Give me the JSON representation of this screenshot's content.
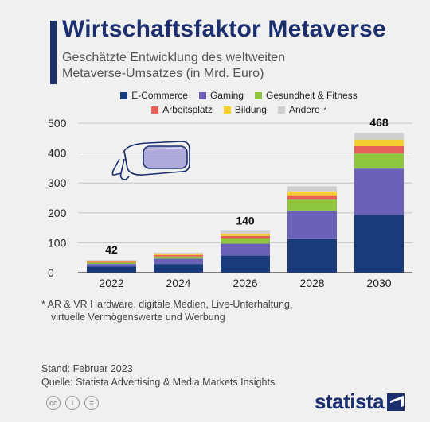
{
  "header": {
    "title": "Wirtschaftsfaktor Metaverse",
    "subtitle_line1": "Geschätzte Entwicklung des weltweiten",
    "subtitle_line2": "Metaverse-Umsatzes (in Mrd. Euro)"
  },
  "footnote": {
    "line1": "* AR & VR Hardware, digitale Medien, Live-Unterhaltung,",
    "line2": "virtuelle Vermögenswerte und Werbung"
  },
  "source": {
    "stand": "Stand: Februar 2023",
    "quelle": "Quelle: Statista Advertising & Media Markets Insights"
  },
  "brand": {
    "name": "statista"
  },
  "cc_icons": [
    "cc",
    "i",
    "="
  ],
  "icons": {
    "illustration": "vr-headset-icon"
  },
  "chart_data": {
    "type": "bar",
    "stacked": true,
    "categories": [
      "2022",
      "2024",
      "2026",
      "2028",
      "2030"
    ],
    "series": [
      {
        "name": "E-Commerce",
        "color": "#1b3a7a",
        "values": [
          20,
          29,
          57,
          112,
          193
        ]
      },
      {
        "name": "Gaming",
        "color": "#6b62b8",
        "values": [
          9,
          18,
          40,
          96,
          155
        ]
      },
      {
        "name": "Gesundheit & Fitness",
        "color": "#8ec63f",
        "values": [
          4,
          7,
          16,
          36,
          50
        ]
      },
      {
        "name": "Arbeitsplatz",
        "color": "#e8605a",
        "values": [
          3,
          5,
          10,
          15,
          25
        ]
      },
      {
        "name": "Bildung",
        "color": "#f4d02e",
        "values": [
          3,
          4,
          8,
          13,
          22
        ]
      },
      {
        "name": "Andere",
        "legend_suffix": "*",
        "color": "#cfcfcf",
        "values": [
          3,
          4,
          9,
          17,
          23
        ]
      }
    ],
    "totals_labels": {
      "2022": "42",
      "2026": "140",
      "2030": "468"
    },
    "y_ticks": [
      "0",
      "100",
      "200",
      "300",
      "400",
      "500"
    ],
    "ylim": [
      0,
      500
    ],
    "grid": true,
    "legend_position": "top"
  }
}
